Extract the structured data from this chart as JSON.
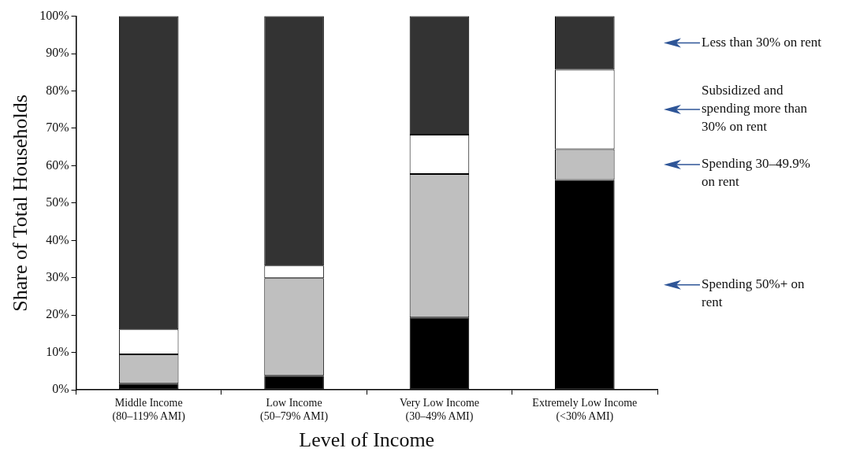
{
  "chart_data": {
    "type": "bar",
    "stacked": true,
    "xlabel": "Level of Income",
    "ylabel": "Share of Total Households",
    "categories": [
      "Middle Income\n(80–119% AMI)",
      "Low Income\n(50–79% AMI)",
      "Very Low Income\n(30–49% AMI)",
      "Extremely Low Income\n(<30% AMI)"
    ],
    "series": [
      {
        "name": "Spending 50%+ on rent",
        "color": "#000000",
        "values": [
          1.7,
          3.8,
          19.4,
          56.2
        ]
      },
      {
        "name": "Spending 30–49.9% on rent",
        "color": "#bfbfbf",
        "values": [
          7.8,
          26.1,
          38.4,
          8.2
        ]
      },
      {
        "name": "Subsidized and spending more than 30% on rent",
        "color": "#ffffff",
        "values": [
          6.7,
          3.4,
          10.5,
          21.3
        ]
      },
      {
        "name": "Less than 30% on rent",
        "color": "#333333",
        "values": [
          83.8,
          66.7,
          31.7,
          14.3
        ]
      }
    ],
    "ylim": [
      0,
      100
    ],
    "yticks": [
      {
        "value": 0,
        "label": "0%"
      },
      {
        "value": 10,
        "label": "10%"
      },
      {
        "value": 20,
        "label": "20%"
      },
      {
        "value": 30,
        "label": "30%"
      },
      {
        "value": 40,
        "label": "40%"
      },
      {
        "value": 50,
        "label": "50%"
      },
      {
        "value": 60,
        "label": "60%"
      },
      {
        "value": 70,
        "label": "70%"
      },
      {
        "value": 80,
        "label": "80%"
      },
      {
        "value": 90,
        "label": "90%"
      },
      {
        "value": 100,
        "label": "100%"
      }
    ],
    "grid": false,
    "legend": false
  }
}
